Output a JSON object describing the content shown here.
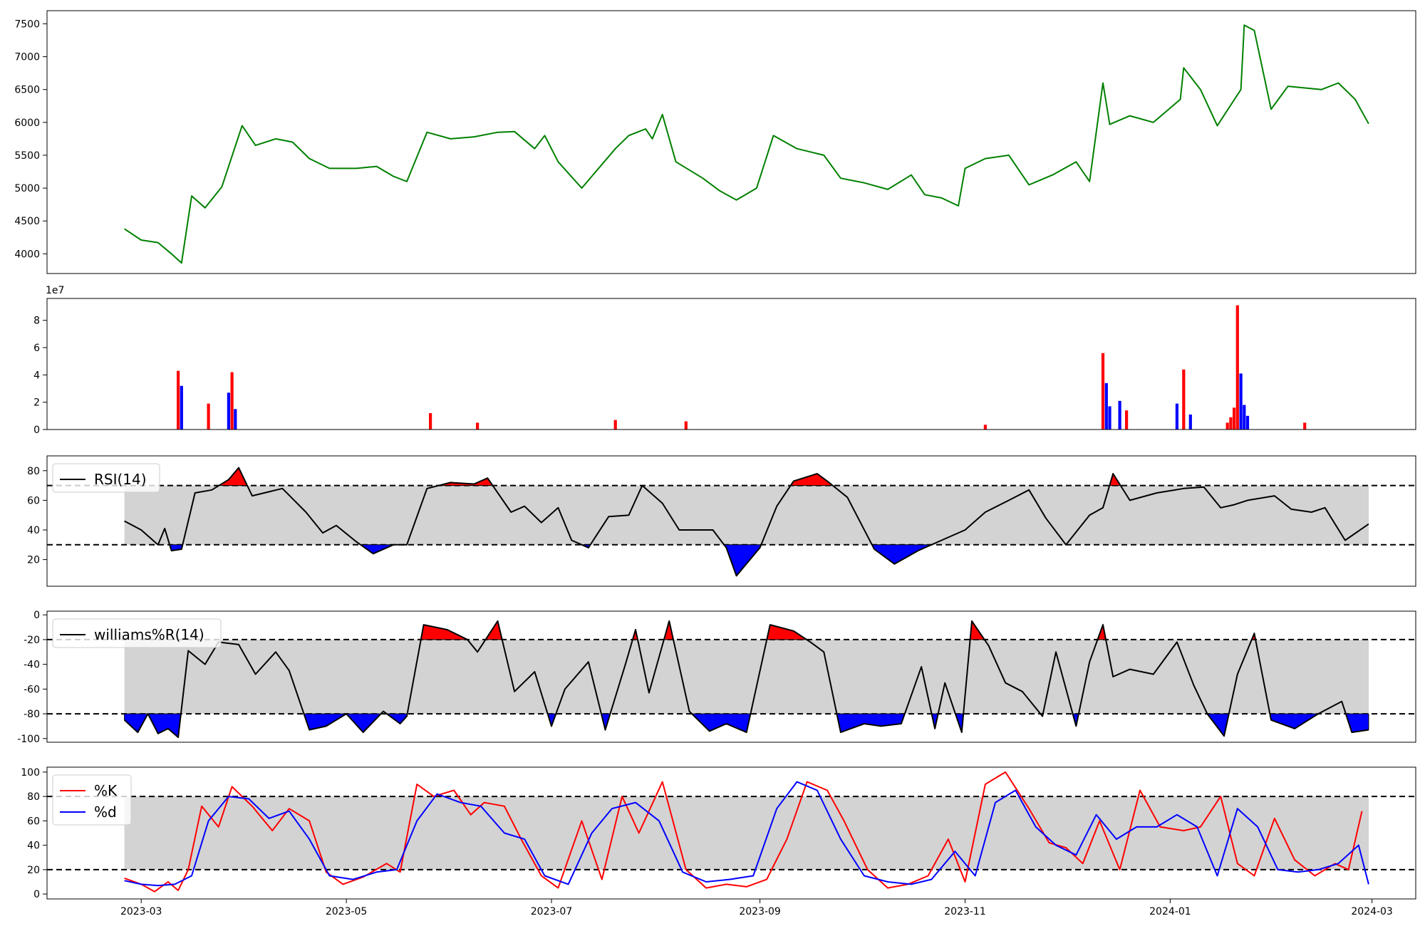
{
  "chart_data": [
    {
      "type": "line",
      "name": "price",
      "color": "#008000",
      "ylim": [
        3700,
        7700
      ],
      "yticks": [
        4000,
        4500,
        5000,
        5500,
        6000,
        6500,
        7000,
        7500
      ],
      "x": [
        "2023-02-24",
        "2023-03-01",
        "2023-03-06",
        "2023-03-10",
        "2023-03-13",
        "2023-03-16",
        "2023-03-20",
        "2023-03-25",
        "2023-03-31",
        "2023-04-04",
        "2023-04-10",
        "2023-04-15",
        "2023-04-20",
        "2023-04-26",
        "2023-05-04",
        "2023-05-10",
        "2023-05-15",
        "2023-05-19",
        "2023-05-25",
        "2023-06-01",
        "2023-06-08",
        "2023-06-15",
        "2023-06-20",
        "2023-06-26",
        "2023-06-29",
        "2023-07-03",
        "2023-07-10",
        "2023-07-20",
        "2023-07-24",
        "2023-07-29",
        "2023-07-31",
        "2023-08-03",
        "2023-08-07",
        "2023-08-15",
        "2023-08-20",
        "2023-08-25",
        "2023-08-31",
        "2023-09-05",
        "2023-09-12",
        "2023-09-20",
        "2023-09-25",
        "2023-10-02",
        "2023-10-09",
        "2023-10-16",
        "2023-10-20",
        "2023-10-25",
        "2023-10-30",
        "2023-11-01",
        "2023-11-07",
        "2023-11-14",
        "2023-11-20",
        "2023-11-27",
        "2023-12-04",
        "2023-12-08",
        "2023-12-12",
        "2023-12-14",
        "2023-12-20",
        "2023-12-27",
        "2024-01-04",
        "2024-01-05",
        "2024-01-10",
        "2024-01-15",
        "2024-01-22",
        "2024-01-23",
        "2024-01-26",
        "2024-01-31",
        "2024-02-05",
        "2024-02-15",
        "2024-02-20",
        "2024-02-25",
        "2024-02-29"
      ],
      "values": [
        4380,
        4210,
        4170,
        4000,
        3860,
        4880,
        4700,
        5020,
        5950,
        5650,
        5750,
        5700,
        5450,
        5300,
        5300,
        5330,
        5180,
        5100,
        5850,
        5750,
        5780,
        5850,
        5860,
        5600,
        5800,
        5400,
        5000,
        5600,
        5800,
        5900,
        5750,
        6120,
        5400,
        5150,
        4960,
        4820,
        5000,
        5800,
        5600,
        5500,
        5150,
        5080,
        4980,
        5200,
        4900,
        4850,
        4730,
        5300,
        5450,
        5500,
        5050,
        5200,
        5400,
        5100,
        6600,
        5970,
        6100,
        6000,
        6350,
        6830,
        6500,
        5950,
        6500,
        7480,
        7400,
        6200,
        6550,
        6500,
        6600,
        6350,
        5980
      ]
    },
    {
      "type": "bar",
      "name": "volume",
      "ylim": [
        0,
        96000000
      ],
      "yticks": [
        0,
        20000000,
        40000000,
        60000000,
        80000000
      ],
      "ytick_labels": [
        "0",
        "2",
        "4",
        "6",
        "8"
      ],
      "offset_label": "1e7",
      "colors": {
        "up": "#ff0000",
        "down": "#0000ff"
      },
      "x": [
        "2023-03-12",
        "2023-03-13",
        "2023-03-21",
        "2023-03-27",
        "2023-03-28",
        "2023-03-29",
        "2023-05-26",
        "2023-06-09",
        "2023-07-20",
        "2023-08-10",
        "2023-11-07",
        "2023-12-12",
        "2023-12-13",
        "2023-12-14",
        "2023-12-17",
        "2023-12-19",
        "2024-01-03",
        "2024-01-05",
        "2024-01-07",
        "2024-01-18",
        "2024-01-19",
        "2024-01-20",
        "2024-01-21",
        "2024-01-22",
        "2024-01-23",
        "2024-01-24",
        "2024-02-10"
      ],
      "values": [
        43000000,
        32000000,
        19000000,
        27000000,
        42000000,
        15000000,
        12000000,
        5000000,
        7000000,
        6000000,
        3500000,
        56000000,
        34000000,
        17000000,
        21000000,
        14000000,
        19000000,
        44000000,
        11000000,
        5000000,
        9000000,
        16000000,
        91000000,
        41000000,
        18000000,
        10000000,
        5000000
      ],
      "up": [
        true,
        false,
        true,
        false,
        true,
        false,
        true,
        true,
        true,
        true,
        true,
        true,
        false,
        false,
        false,
        true,
        false,
        true,
        false,
        true,
        true,
        true,
        true,
        false,
        false,
        false,
        true
      ]
    },
    {
      "type": "line",
      "name": "RSI(14)",
      "legend": [
        "RSI(14)"
      ],
      "color": "#000000",
      "ylim": [
        2,
        90
      ],
      "yticks": [
        20,
        40,
        60,
        80
      ],
      "upper": 70,
      "lower": 30,
      "colors": {
        "band": "#d3d3d3",
        "over": "#ff0000",
        "under": "#0000ff"
      },
      "x": [
        "2023-02-24",
        "2023-03-01",
        "2023-03-06",
        "2023-03-08",
        "2023-03-10",
        "2023-03-13",
        "2023-03-17",
        "2023-03-22",
        "2023-03-27",
        "2023-03-30",
        "2023-04-03",
        "2023-04-12",
        "2023-04-19",
        "2023-04-24",
        "2023-04-28",
        "2023-05-04",
        "2023-05-09",
        "2023-05-15",
        "2023-05-19",
        "2023-05-25",
        "2023-06-01",
        "2023-06-08",
        "2023-06-12",
        "2023-06-19",
        "2023-06-23",
        "2023-06-28",
        "2023-07-03",
        "2023-07-07",
        "2023-07-12",
        "2023-07-18",
        "2023-07-24",
        "2023-07-28",
        "2023-08-03",
        "2023-08-08",
        "2023-08-14",
        "2023-08-18",
        "2023-08-22",
        "2023-08-25",
        "2023-09-01",
        "2023-09-06",
        "2023-09-11",
        "2023-09-18",
        "2023-09-21",
        "2023-09-27",
        "2023-10-05",
        "2023-10-11",
        "2023-10-18",
        "2023-10-25",
        "2023-11-01",
        "2023-11-07",
        "2023-11-14",
        "2023-11-20",
        "2023-11-25",
        "2023-12-01",
        "2023-12-08",
        "2023-12-12",
        "2023-12-15",
        "2023-12-20",
        "2023-12-28",
        "2024-01-05",
        "2024-01-11",
        "2024-01-16",
        "2024-01-20",
        "2024-01-24",
        "2024-02-01",
        "2024-02-06",
        "2024-02-12",
        "2024-02-16",
        "2024-02-22",
        "2024-02-29"
      ],
      "values": [
        46,
        40,
        30,
        41,
        26,
        27,
        65,
        67,
        74,
        82,
        63,
        68,
        52,
        38,
        43,
        32,
        24,
        30,
        30,
        68,
        72,
        71,
        75,
        52,
        56,
        45,
        55,
        33,
        28,
        49,
        50,
        70,
        58,
        40,
        40,
        40,
        28,
        9,
        28,
        56,
        73,
        78,
        73,
        62,
        27,
        17,
        26,
        33,
        40,
        52,
        60,
        67,
        48,
        30,
        50,
        55,
        78,
        60,
        65,
        68,
        69,
        55,
        57,
        60,
        63,
        54,
        52,
        55,
        33,
        44
      ]
    },
    {
      "type": "line",
      "name": "williams%R(14)",
      "legend": [
        "williams%R(14)"
      ],
      "color": "#000000",
      "ylim": [
        -103,
        3
      ],
      "yticks": [
        -100,
        -80,
        -60,
        -40,
        -20,
        0
      ],
      "upper": -20,
      "lower": -80,
      "colors": {
        "band": "#d3d3d3",
        "over": "#ff0000",
        "under": "#0000ff"
      },
      "x": [
        "2023-02-24",
        "2023-02-28",
        "2023-03-03",
        "2023-03-06",
        "2023-03-09",
        "2023-03-12",
        "2023-03-15",
        "2023-03-20",
        "2023-03-24",
        "2023-03-30",
        "2023-04-04",
        "2023-04-10",
        "2023-04-14",
        "2023-04-20",
        "2023-04-25",
        "2023-05-01",
        "2023-05-06",
        "2023-05-12",
        "2023-05-17",
        "2023-05-19",
        "2023-05-24",
        "2023-05-31",
        "2023-06-06",
        "2023-06-09",
        "2023-06-15",
        "2023-06-20",
        "2023-06-26",
        "2023-07-01",
        "2023-07-05",
        "2023-07-12",
        "2023-07-17",
        "2023-07-23",
        "2023-07-26",
        "2023-07-30",
        "2023-08-05",
        "2023-08-11",
        "2023-08-17",
        "2023-08-22",
        "2023-08-28",
        "2023-09-04",
        "2023-09-11",
        "2023-09-16",
        "2023-09-20",
        "2023-09-25",
        "2023-10-02",
        "2023-10-07",
        "2023-10-13",
        "2023-10-19",
        "2023-10-23",
        "2023-10-26",
        "2023-10-31",
        "2023-11-03",
        "2023-11-08",
        "2023-11-13",
        "2023-11-18",
        "2023-11-24",
        "2023-11-28",
        "2023-12-04",
        "2023-12-08",
        "2023-12-12",
        "2023-12-15",
        "2023-12-20",
        "2023-12-27",
        "2024-01-03",
        "2024-01-08",
        "2024-01-12",
        "2024-01-17",
        "2024-01-21",
        "2024-01-26",
        "2024-01-31",
        "2024-02-07",
        "2024-02-14",
        "2024-02-21",
        "2024-02-24",
        "2024-02-29"
      ],
      "values": [
        -85,
        -95,
        -80,
        -96,
        -92,
        -99,
        -29,
        -40,
        -22,
        -24,
        -48,
        -30,
        -45,
        -93,
        -90,
        -80,
        -95,
        -78,
        -88,
        -82,
        -8,
        -12,
        -20,
        -30,
        -5,
        -62,
        -46,
        -90,
        -60,
        -38,
        -93,
        -40,
        -12,
        -63,
        -5,
        -78,
        -94,
        -88,
        -95,
        -8,
        -13,
        -22,
        -30,
        -95,
        -88,
        -90,
        -88,
        -42,
        -92,
        -55,
        -95,
        -5,
        -25,
        -55,
        -62,
        -82,
        -30,
        -90,
        -38,
        -8,
        -50,
        -44,
        -48,
        -22,
        -57,
        -80,
        -98,
        -48,
        -15,
        -85,
        -92,
        -80,
        -70,
        -95,
        -93
      ]
    },
    {
      "type": "line",
      "name": "stochastic",
      "legend": [
        "%K",
        "%d"
      ],
      "ylim": [
        -4,
        104
      ],
      "yticks": [
        0,
        20,
        40,
        60,
        80,
        100
      ],
      "upper": 80,
      "lower": 20,
      "colors": {
        "band": "#d3d3d3"
      },
      "xticks": [
        "2023-03-01",
        "2023-05-01",
        "2023-07-01",
        "2023-09-01",
        "2023-11-01",
        "2024-01-01",
        "2024-03-01"
      ],
      "xtick_labels": [
        "2023-03",
        "2023-05",
        "2023-07",
        "2023-09",
        "2023-11",
        "2024-01",
        "2024-03"
      ],
      "series": [
        {
          "name": "%K",
          "color": "#ff0000",
          "x": [
            "2023-02-24",
            "2023-03-01",
            "2023-03-05",
            "2023-03-09",
            "2023-03-12",
            "2023-03-15",
            "2023-03-19",
            "2023-03-24",
            "2023-03-28",
            "2023-04-03",
            "2023-04-09",
            "2023-04-14",
            "2023-04-20",
            "2023-04-25",
            "2023-04-30",
            "2023-05-06",
            "2023-05-13",
            "2023-05-17",
            "2023-05-22",
            "2023-05-27",
            "2023-06-02",
            "2023-06-07",
            "2023-06-11",
            "2023-06-17",
            "2023-06-22",
            "2023-06-28",
            "2023-07-03",
            "2023-07-10",
            "2023-07-16",
            "2023-07-22",
            "2023-07-27",
            "2023-08-03",
            "2023-08-10",
            "2023-08-16",
            "2023-08-22",
            "2023-08-28",
            "2023-09-03",
            "2023-09-09",
            "2023-09-15",
            "2023-09-21",
            "2023-09-26",
            "2023-10-03",
            "2023-10-09",
            "2023-10-15",
            "2023-10-21",
            "2023-10-27",
            "2023-11-01",
            "2023-11-07",
            "2023-11-13",
            "2023-11-20",
            "2023-11-26",
            "2023-12-01",
            "2023-12-06",
            "2023-12-11",
            "2023-12-17",
            "2023-12-23",
            "2023-12-29",
            "2024-01-05",
            "2024-01-10",
            "2024-01-16",
            "2024-01-21",
            "2024-01-26",
            "2024-02-01",
            "2024-02-07",
            "2024-02-13",
            "2024-02-19",
            "2024-02-23",
            "2024-02-27"
          ],
          "values": [
            13,
            8,
            2,
            10,
            3,
            20,
            72,
            55,
            88,
            72,
            52,
            70,
            60,
            18,
            8,
            14,
            25,
            18,
            90,
            80,
            85,
            65,
            75,
            72,
            45,
            15,
            5,
            60,
            12,
            80,
            50,
            92,
            20,
            5,
            8,
            6,
            12,
            45,
            92,
            85,
            60,
            20,
            5,
            8,
            15,
            45,
            10,
            90,
            100,
            70,
            42,
            38,
            25,
            60,
            20,
            85,
            55,
            52,
            55,
            80,
            25,
            15,
            62,
            28,
            15,
            25,
            20,
            68
          ]
        },
        {
          "name": "%d",
          "color": "#0000ff",
          "x": [
            "2023-02-24",
            "2023-03-01",
            "2023-03-06",
            "2023-03-11",
            "2023-03-16",
            "2023-03-21",
            "2023-03-27",
            "2023-04-02",
            "2023-04-08",
            "2023-04-14",
            "2023-04-20",
            "2023-04-26",
            "2023-05-03",
            "2023-05-10",
            "2023-05-16",
            "2023-05-22",
            "2023-05-28",
            "2023-06-04",
            "2023-06-10",
            "2023-06-17",
            "2023-06-23",
            "2023-06-29",
            "2023-07-06",
            "2023-07-13",
            "2023-07-19",
            "2023-07-26",
            "2023-08-02",
            "2023-08-09",
            "2023-08-16",
            "2023-08-23",
            "2023-08-30",
            "2023-09-06",
            "2023-09-12",
            "2023-09-18",
            "2023-09-25",
            "2023-10-02",
            "2023-10-09",
            "2023-10-16",
            "2023-10-22",
            "2023-10-29",
            "2023-11-04",
            "2023-11-10",
            "2023-11-16",
            "2023-11-22",
            "2023-11-28",
            "2023-12-04",
            "2023-12-10",
            "2023-12-16",
            "2023-12-22",
            "2023-12-28",
            "2024-01-03",
            "2024-01-09",
            "2024-01-15",
            "2024-01-21",
            "2024-01-27",
            "2024-02-02",
            "2024-02-08",
            "2024-02-14",
            "2024-02-20",
            "2024-02-26",
            "2024-02-29"
          ],
          "values": [
            11,
            8,
            7,
            8,
            15,
            60,
            80,
            78,
            62,
            68,
            45,
            15,
            12,
            18,
            20,
            60,
            82,
            75,
            72,
            50,
            45,
            15,
            8,
            50,
            70,
            75,
            60,
            18,
            10,
            12,
            15,
            70,
            92,
            85,
            45,
            15,
            10,
            8,
            12,
            35,
            15,
            75,
            85,
            55,
            40,
            32,
            65,
            45,
            55,
            55,
            65,
            55,
            15,
            70,
            55,
            20,
            18,
            20,
            25,
            40,
            8
          ]
        }
      ]
    }
  ]
}
